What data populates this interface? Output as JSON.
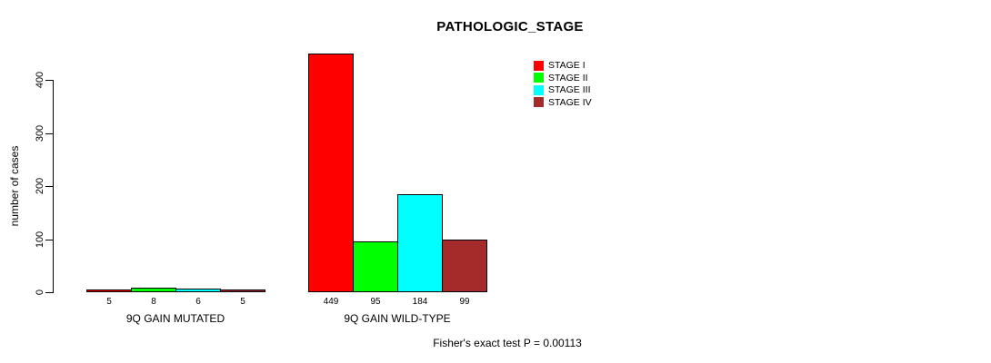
{
  "chart_data": {
    "type": "bar",
    "title": "PATHOLOGIC_STAGE",
    "ylabel": "number of cases",
    "xlabel": "",
    "ylim": [
      0,
      400
    ],
    "yticks": [
      0,
      100,
      200,
      300,
      400
    ],
    "grid": false,
    "legend_position": "top-right",
    "bar_value_labels_shown": true,
    "categories": [
      "9Q GAIN MUTATED",
      "9Q GAIN WILD-TYPE"
    ],
    "groups": [
      {
        "label": "9Q GAIN MUTATED",
        "values": [
          5,
          8,
          6,
          5
        ]
      },
      {
        "label": "9Q GAIN WILD-TYPE",
        "values": [
          449,
          95,
          184,
          99
        ]
      }
    ],
    "series": [
      {
        "name": "STAGE I",
        "color": "#FF0000",
        "values": [
          5,
          449
        ]
      },
      {
        "name": "STAGE II",
        "color": "#00FF00",
        "values": [
          8,
          95
        ]
      },
      {
        "name": "STAGE III",
        "color": "#00FFFF",
        "values": [
          6,
          184
        ]
      },
      {
        "name": "STAGE IV",
        "color": "#A52A2A",
        "values": [
          5,
          99
        ]
      }
    ],
    "footnote": "Fisher's exact test P = 0.00113"
  },
  "colors": {
    "axis": "#000000",
    "background": "#FFFFFF",
    "bar_border": "#000000"
  }
}
